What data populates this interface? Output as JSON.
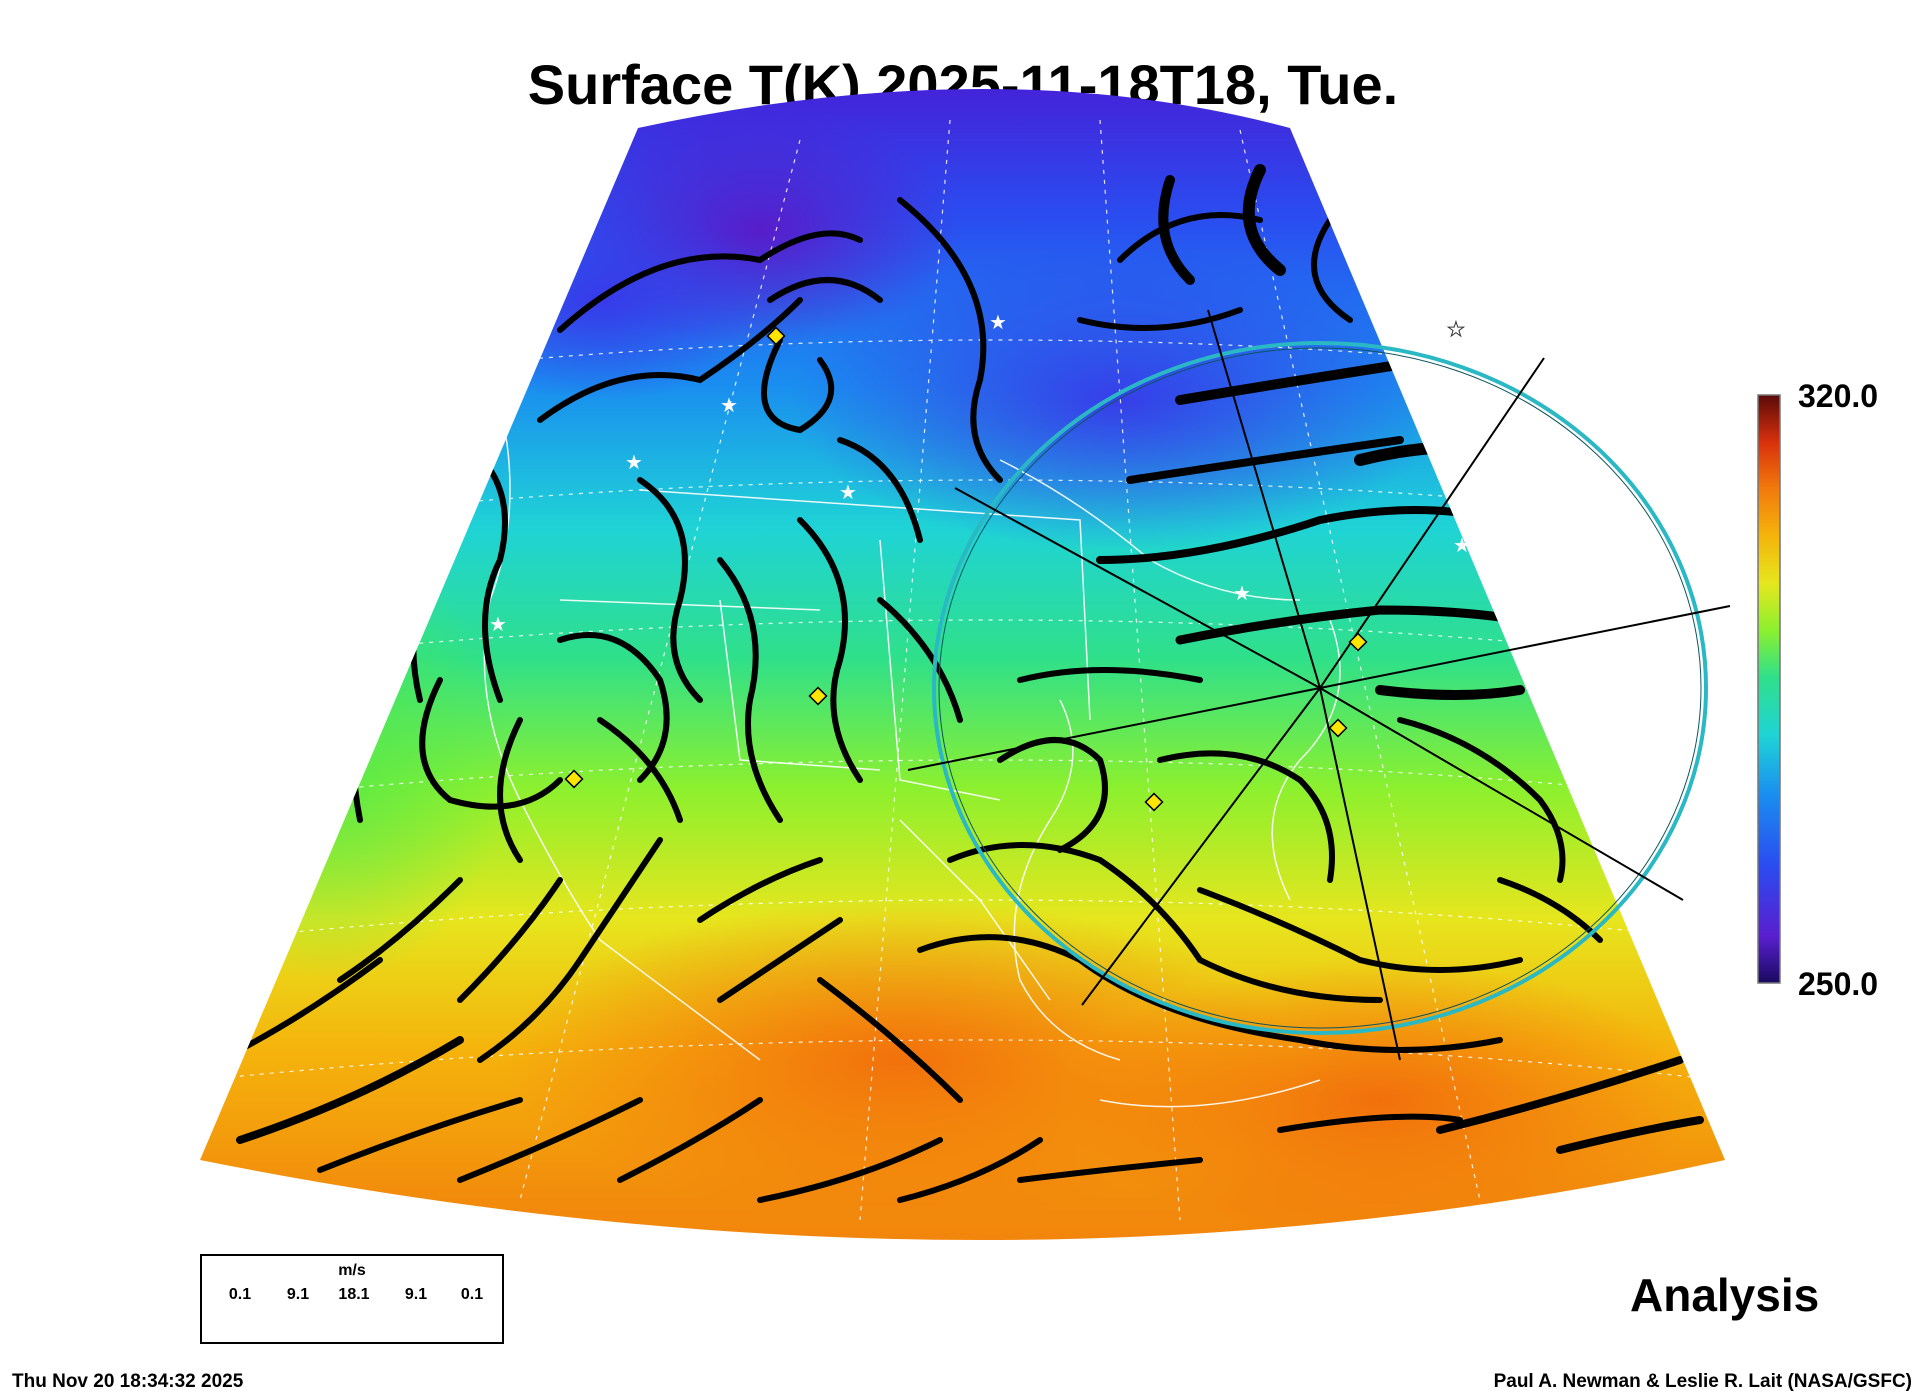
{
  "title": "Surface T(K) 2025-11-18T18, Tue.",
  "colorbar": {
    "max_label": "320.0",
    "min_label": "250.0",
    "min": 250.0,
    "max": 320.0,
    "colors": [
      "#2a0a6e",
      "#5a1fd0",
      "#2a4cf0",
      "#1a8ef0",
      "#1fd3d6",
      "#2fe08a",
      "#8cf02e",
      "#e6e61e",
      "#f5b40c",
      "#f27a0c",
      "#d8300c",
      "#8a0b0b",
      "#4a0a0a"
    ]
  },
  "wind_legend": {
    "units": "m/s",
    "ticks": [
      "0.1",
      "9.1",
      "18.1",
      "9.1",
      "0.1"
    ]
  },
  "corner_label": "Analysis",
  "footer": {
    "timestamp": "Thu Nov 20 18:34:32 2025",
    "credit": "Paul A. Newman & Leslie R. Lait (NASA/GSFC)"
  },
  "map_colors": {
    "coast": "#ffffff",
    "streamline": "#000000",
    "range_ring": "#2ab8c4",
    "marker_diamond": "#ffe600",
    "marker_star": "#ffffff"
  }
}
